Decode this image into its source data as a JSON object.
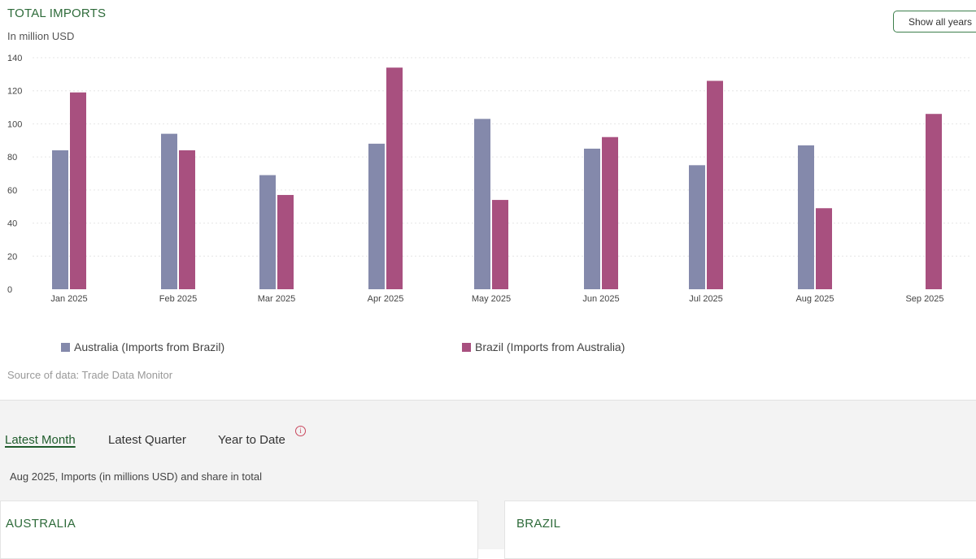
{
  "header": {
    "title": "TOTAL IMPORTS",
    "subtitle": "In million USD",
    "show_all_label": "Show all years"
  },
  "chart_data": {
    "type": "bar",
    "categories": [
      "Jan 2025",
      "Feb 2025",
      "Mar 2025",
      "Apr 2025",
      "May 2025",
      "Jun 2025",
      "Jul 2025",
      "Aug 2025",
      "Sep 2025"
    ],
    "series": [
      {
        "name": "Australia (Imports from Brazil)",
        "color": "#8489ab",
        "values": [
          84,
          94,
          69,
          88,
          103,
          85,
          75,
          87,
          null
        ]
      },
      {
        "name": "Brazil (Imports from Australia)",
        "color": "#a8507f",
        "values": [
          119,
          84,
          57,
          134,
          54,
          92,
          126,
          49,
          106
        ]
      }
    ],
    "y_ticks": [
      "0",
      "20",
      "40",
      "60",
      "80",
      "100",
      "120",
      "140"
    ],
    "ylim": [
      0,
      140
    ],
    "grid": true,
    "legend_position": "bottom"
  },
  "footer": {
    "source": "Source of data: Trade Data Monitor"
  },
  "tabs": [
    {
      "label": "Latest Month",
      "active": true
    },
    {
      "label": "Latest Quarter",
      "active": false
    },
    {
      "label": "Year to Date",
      "active": false
    }
  ],
  "info_icon": {
    "icon": "info-icon",
    "glyph": "i"
  },
  "period_label": "Aug 2025, Imports (in millions USD) and share in total",
  "cards": [
    {
      "title": "AUSTRALIA"
    },
    {
      "title": "BRAZIL"
    }
  ]
}
